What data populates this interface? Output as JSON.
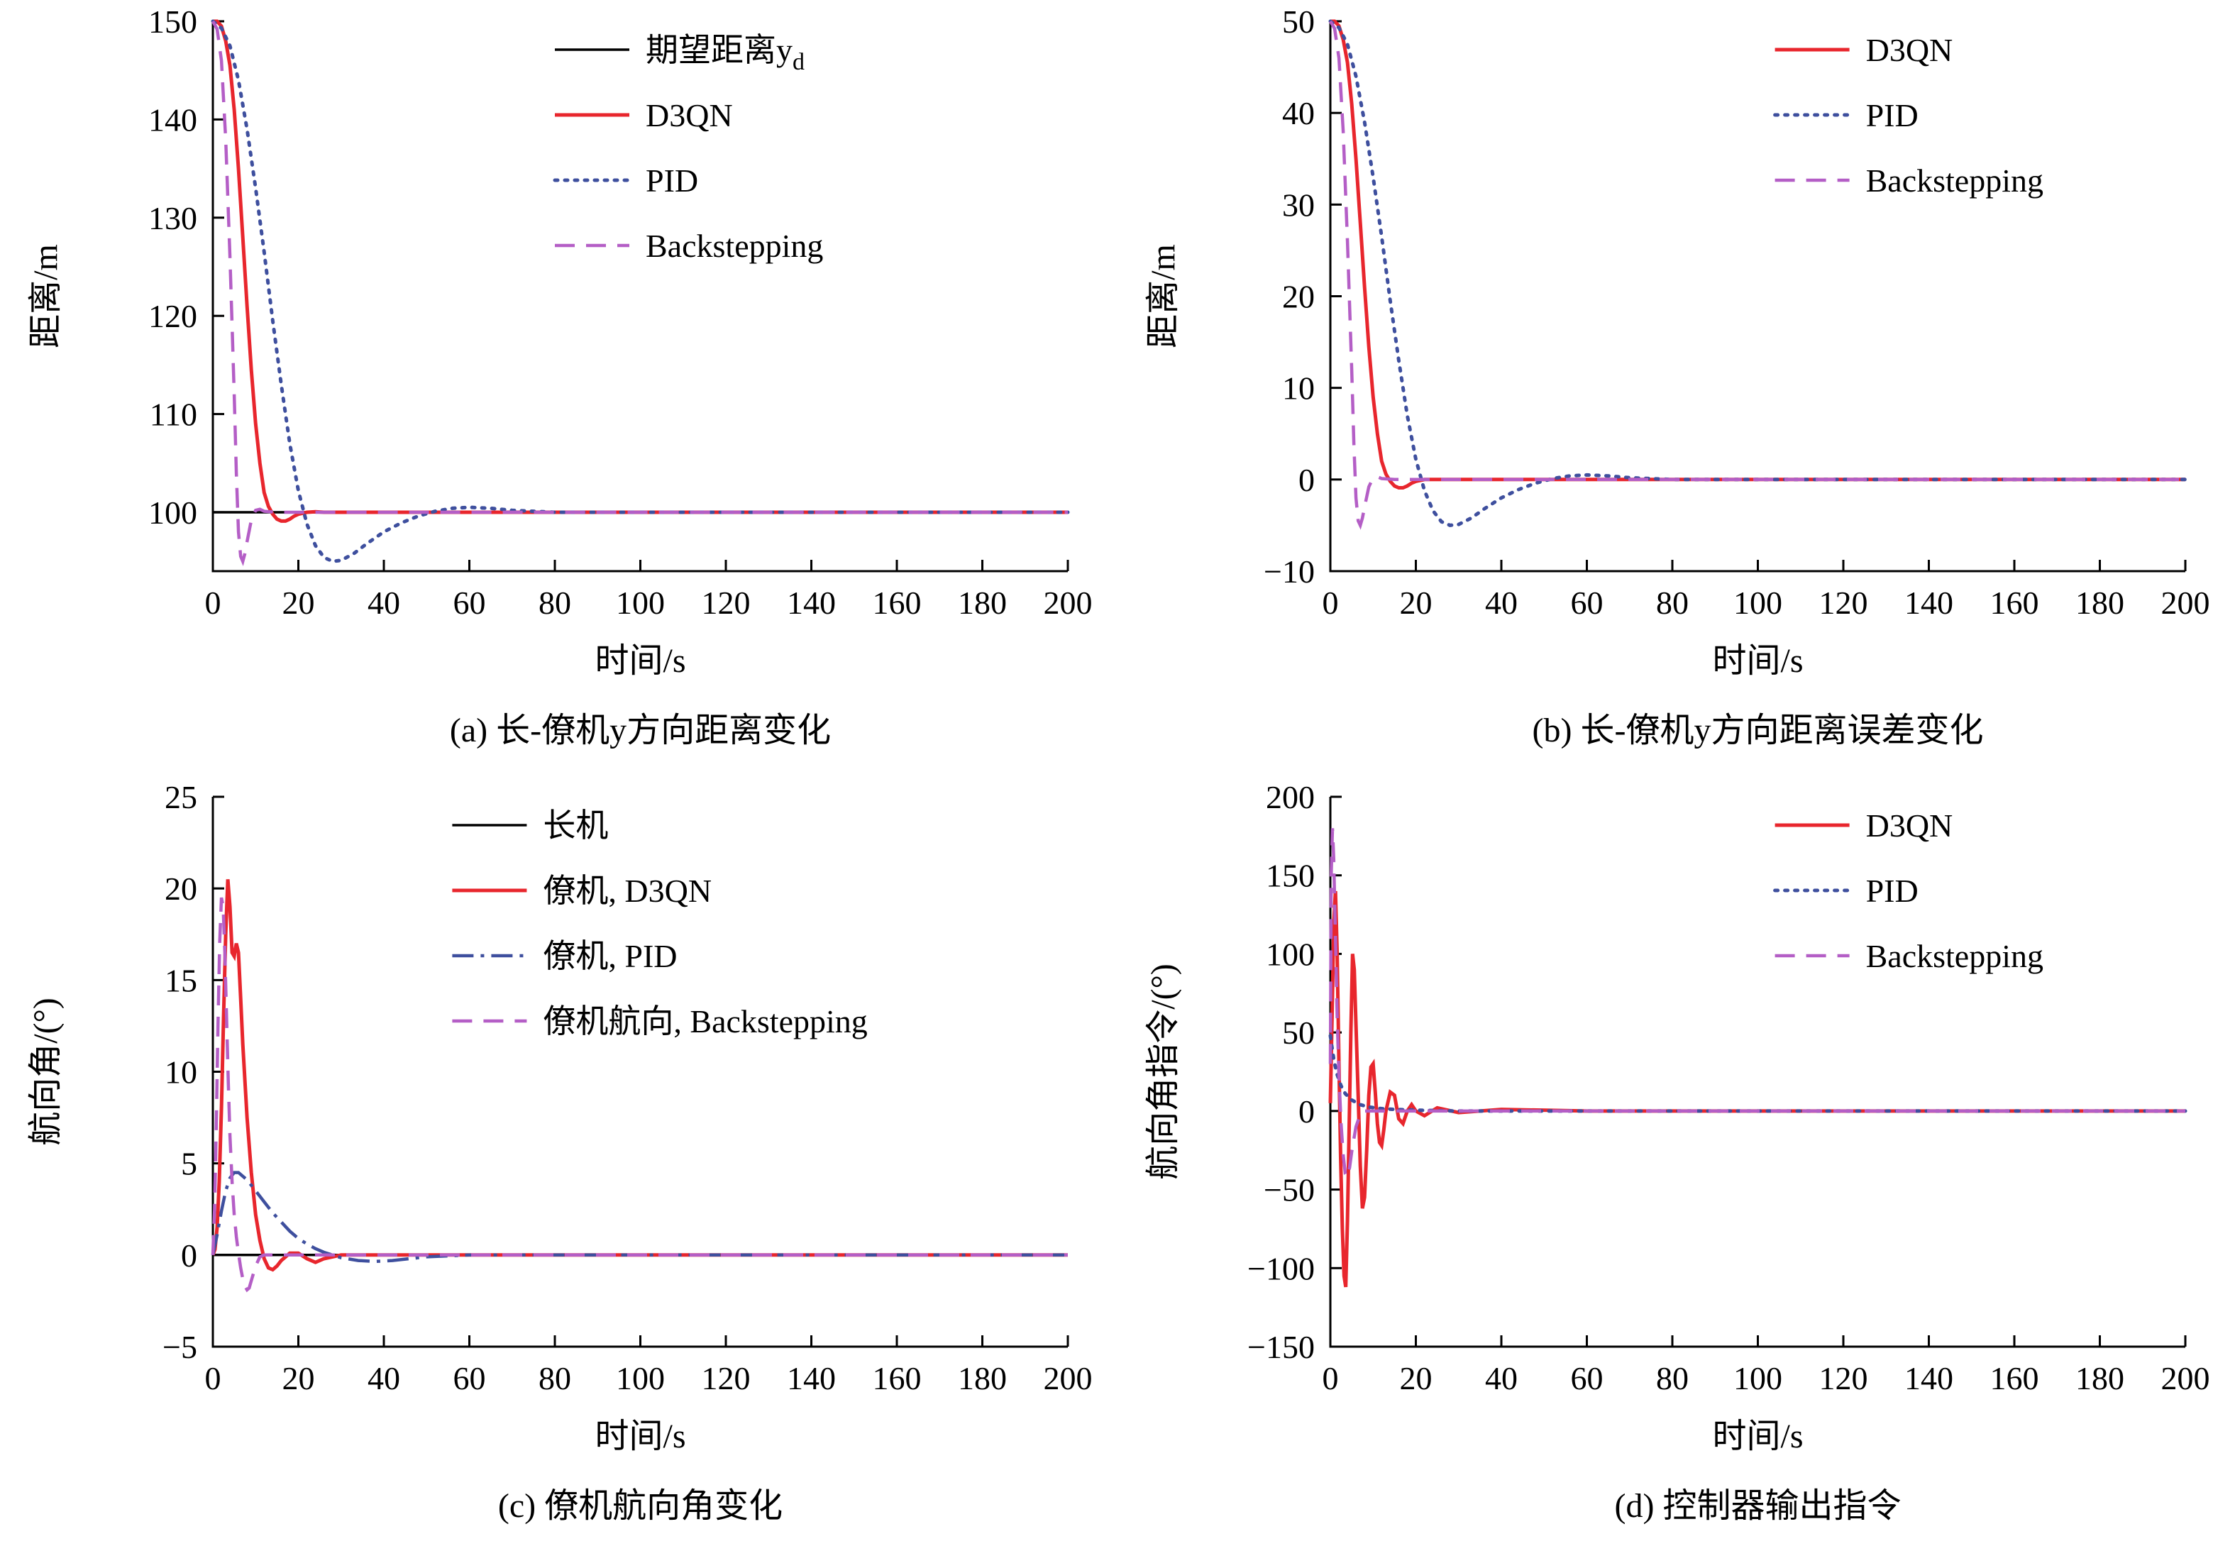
{
  "page": {
    "background": "#ffffff"
  },
  "palette": {
    "black": "#000000",
    "red": "#e8262d",
    "blue": "#3e4f9e",
    "purple": "#b45ec6"
  },
  "chart_data": [
    {
      "id": "a",
      "type": "line",
      "caption": "(a) 长-僚机y方向距离变化",
      "xlabel": "时间/s",
      "ylabel": "距离/m",
      "xlim": [
        0,
        200
      ],
      "ylim": [
        94,
        150
      ],
      "xticks": [
        0,
        20,
        40,
        60,
        80,
        100,
        120,
        140,
        160,
        180,
        200
      ],
      "yticks": [
        100,
        110,
        120,
        130,
        140,
        150
      ],
      "legend_pos": {
        "fx": 0.4,
        "fy": 0.0
      },
      "series": [
        {
          "name": "期望距离y_d",
          "color": "black",
          "dash": "solid",
          "width": 3.5,
          "x": [
            0,
            200
          ],
          "y": [
            100,
            100
          ]
        },
        {
          "name": "D3QN",
          "color": "red",
          "dash": "solid",
          "width": 5,
          "x": [
            0,
            1,
            2,
            3,
            4,
            5,
            6,
            7,
            8,
            9,
            10,
            11,
            12,
            13,
            14,
            15,
            16,
            17,
            18,
            19,
            20,
            22,
            24,
            26,
            30,
            40,
            60,
            100,
            200
          ],
          "y": [
            150,
            150,
            149.5,
            148,
            145.5,
            141,
            135,
            128,
            121,
            114.5,
            109,
            105,
            102,
            100.6,
            99.8,
            99.3,
            99.1,
            99.1,
            99.3,
            99.6,
            99.8,
            100,
            100.05,
            100,
            100,
            100,
            100,
            100,
            100
          ]
        },
        {
          "name": "PID",
          "color": "blue",
          "dash": "dotted",
          "width": 5,
          "x": [
            0,
            2,
            4,
            6,
            8,
            10,
            12,
            14,
            16,
            18,
            20,
            22,
            24,
            26,
            28,
            30,
            33,
            36,
            40,
            44,
            48,
            52,
            56,
            60,
            65,
            70,
            80,
            100,
            200
          ],
          "y": [
            150,
            149.3,
            147.5,
            144,
            139,
            133,
            126.5,
            119.5,
            113,
            107,
            102.2,
            98.8,
            96.6,
            95.4,
            95.0,
            95.1,
            95.8,
            96.8,
            98.0,
            98.9,
            99.6,
            100.1,
            100.4,
            100.5,
            100.4,
            100.2,
            100,
            100,
            100
          ]
        },
        {
          "name": "Backstepping",
          "color": "purple",
          "dash": "dashed",
          "width": 4.5,
          "x": [
            0,
            1,
            2,
            3,
            4,
            5,
            5.5,
            6,
            6.5,
            7,
            7.5,
            8,
            9,
            10,
            11,
            12,
            15,
            200
          ],
          "y": [
            150,
            149.2,
            146,
            138,
            126,
            112,
            104,
            98,
            95.5,
            95,
            95.8,
            97,
            99.2,
            100.2,
            100.3,
            100.1,
            100,
            100
          ]
        }
      ]
    },
    {
      "id": "b",
      "type": "line",
      "caption": "(b) 长-僚机y方向距离误差变化",
      "xlabel": "时间/s",
      "ylabel": "距离/m",
      "xlim": [
        0,
        200
      ],
      "ylim": [
        -10,
        50
      ],
      "xticks": [
        0,
        20,
        40,
        60,
        80,
        100,
        120,
        140,
        160,
        180,
        200
      ],
      "yticks": [
        -10,
        0,
        10,
        20,
        30,
        40,
        50
      ],
      "legend_pos": {
        "fx": 0.52,
        "fy": 0.0
      },
      "series": [
        {
          "name": "D3QN",
          "color": "red",
          "dash": "solid",
          "width": 5,
          "x": [
            0,
            1,
            2,
            3,
            4,
            5,
            6,
            7,
            8,
            9,
            10,
            11,
            12,
            13,
            14,
            15,
            16,
            17,
            18,
            19,
            20,
            22,
            24,
            26,
            30,
            40,
            60,
            100,
            200
          ],
          "y": [
            50,
            50,
            49.5,
            48,
            45.5,
            41,
            35,
            28,
            21,
            14.5,
            9,
            5,
            2,
            0.6,
            -0.2,
            -0.7,
            -0.9,
            -0.9,
            -0.7,
            -0.4,
            -0.2,
            0,
            0,
            0,
            0,
            0,
            0,
            0,
            0
          ]
        },
        {
          "name": "PID",
          "color": "blue",
          "dash": "dotted",
          "width": 5,
          "x": [
            0,
            2,
            4,
            6,
            8,
            10,
            12,
            14,
            16,
            18,
            20,
            22,
            24,
            26,
            28,
            30,
            33,
            36,
            40,
            44,
            48,
            52,
            56,
            60,
            65,
            70,
            80,
            100,
            200
          ],
          "y": [
            50,
            49.3,
            47.5,
            44,
            39,
            33,
            26.5,
            19.5,
            13,
            7,
            2.2,
            -1.2,
            -3.4,
            -4.6,
            -5.0,
            -4.9,
            -4.2,
            -3.2,
            -2.0,
            -1.1,
            -0.4,
            0.1,
            0.4,
            0.5,
            0.4,
            0.2,
            0,
            0,
            0
          ]
        },
        {
          "name": "Backstepping",
          "color": "purple",
          "dash": "dashed",
          "width": 4.5,
          "x": [
            0,
            1,
            2,
            3,
            4,
            5,
            5.5,
            6,
            6.5,
            7,
            7.5,
            8,
            9,
            10,
            11,
            12,
            15,
            200
          ],
          "y": [
            50,
            49.2,
            46,
            38,
            26,
            12,
            4,
            -2,
            -4.5,
            -5,
            -4.2,
            -3,
            -0.8,
            0.2,
            0.3,
            0.1,
            0,
            0
          ]
        }
      ]
    },
    {
      "id": "c",
      "type": "line",
      "caption": "(c) 僚机航向角变化",
      "xlabel": "时间/s",
      "ylabel": "航向角/(°)",
      "xlim": [
        0,
        200
      ],
      "ylim": [
        -5,
        25
      ],
      "xticks": [
        0,
        20,
        40,
        60,
        80,
        100,
        120,
        140,
        160,
        180,
        200
      ],
      "yticks": [
        -5,
        0,
        5,
        10,
        15,
        20,
        25
      ],
      "legend_pos": {
        "fx": 0.28,
        "fy": 0.0
      },
      "series": [
        {
          "name": "长机",
          "color": "black",
          "dash": "solid",
          "width": 3.5,
          "x": [
            0,
            200
          ],
          "y": [
            0,
            0
          ]
        },
        {
          "name": "僚机, D3QN",
          "color": "red",
          "dash": "solid",
          "width": 5,
          "x": [
            0,
            0.5,
            1,
            1.5,
            2,
            2.5,
            3,
            3.5,
            4,
            4.5,
            5,
            5.5,
            6,
            6.5,
            7,
            8,
            9,
            10,
            11,
            12,
            13,
            14,
            15,
            16,
            18,
            20,
            22,
            24,
            26,
            30,
            40,
            200
          ],
          "y": [
            0,
            0.3,
            1.5,
            4,
            8,
            13,
            17.5,
            20.5,
            19,
            16.5,
            16.3,
            17,
            16.5,
            14,
            11.5,
            7.5,
            4.5,
            2.2,
            0.8,
            -0.2,
            -0.7,
            -0.8,
            -0.6,
            -0.3,
            0.1,
            0.1,
            -0.2,
            -0.4,
            -0.2,
            0,
            0,
            0
          ]
        },
        {
          "name": "僚机, PID",
          "color": "blue",
          "dash": "dashdot",
          "width": 4.5,
          "x": [
            0,
            1,
            2,
            3,
            4,
            5,
            6,
            7,
            8,
            10,
            12,
            14,
            16,
            18,
            20,
            22,
            24,
            26,
            28,
            30,
            34,
            38,
            42,
            46,
            50,
            60,
            80,
            200
          ],
          "y": [
            0,
            1.1,
            2.4,
            3.5,
            4.2,
            4.5,
            4.5,
            4.3,
            4.1,
            3.5,
            2.9,
            2.3,
            1.8,
            1.3,
            0.9,
            0.6,
            0.35,
            0.15,
            0,
            -0.15,
            -0.3,
            -0.35,
            -0.3,
            -0.2,
            -0.1,
            0,
            0,
            0
          ]
        },
        {
          "name": "僚机航向, Backstepping",
          "color": "purple",
          "dash": "dashed",
          "width": 4.5,
          "x": [
            0,
            0.4,
            0.8,
            1.2,
            1.6,
            2,
            2.4,
            2.8,
            3.2,
            3.6,
            4,
            4.5,
            5,
            5.5,
            6,
            6.5,
            7,
            7.5,
            8,
            8.5,
            9,
            10,
            11,
            12,
            14,
            200
          ],
          "y": [
            0,
            2.5,
            7,
            12.5,
            17,
            19.5,
            19,
            16.5,
            13,
            9.5,
            6.5,
            4,
            2.2,
            1,
            0.1,
            -0.7,
            -1.3,
            -1.7,
            -1.9,
            -1.8,
            -1.4,
            -0.6,
            -0.1,
            0,
            0,
            0
          ]
        }
      ]
    },
    {
      "id": "d",
      "type": "line",
      "caption": "(d) 控制器输出指令",
      "xlabel": "时间/s",
      "ylabel": "航向角指令/(°)",
      "xlim": [
        0,
        200
      ],
      "ylim": [
        -150,
        200
      ],
      "xticks": [
        0,
        20,
        40,
        60,
        80,
        100,
        120,
        140,
        160,
        180,
        200
      ],
      "yticks": [
        -150,
        -100,
        -50,
        0,
        50,
        100,
        150,
        200
      ],
      "legend_pos": {
        "fx": 0.52,
        "fy": 0.0
      },
      "series": [
        {
          "name": "D3QN",
          "color": "red",
          "dash": "solid",
          "width": 5,
          "x": [
            0,
            0.4,
            0.8,
            1.2,
            1.6,
            2,
            2.4,
            2.8,
            3.2,
            3.6,
            4,
            4.4,
            4.8,
            5.2,
            5.6,
            6,
            6.5,
            7,
            7.5,
            8,
            8.5,
            9,
            9.5,
            10,
            10.5,
            11,
            11.5,
            12,
            12.5,
            13,
            14,
            15,
            16,
            17,
            18,
            19,
            20,
            22,
            25,
            30,
            40,
            60,
            100,
            150,
            200
          ],
          "y": [
            5,
            60,
            120,
            140,
            100,
            30,
            -30,
            -75,
            -105,
            -112,
            -70,
            -10,
            50,
            100,
            90,
            55,
            10,
            -35,
            -62,
            -55,
            -25,
            10,
            28,
            30,
            12,
            -8,
            -20,
            -22,
            -12,
            0,
            12,
            10,
            -5,
            -8,
            0,
            4,
            0,
            -3,
            2,
            -1,
            1,
            0,
            0,
            0,
            0
          ]
        },
        {
          "name": "PID",
          "color": "blue",
          "dash": "dotted",
          "width": 5,
          "x": [
            0,
            0.3,
            0.8,
            1.5,
            2.5,
            3.5,
            5,
            7,
            9,
            12,
            15,
            20,
            30,
            50,
            100,
            200
          ],
          "y": [
            48,
            42,
            33,
            24,
            16,
            11,
            7,
            4,
            2.5,
            1.5,
            1,
            0.5,
            0,
            0,
            0,
            0
          ]
        },
        {
          "name": "Backstepping",
          "color": "purple",
          "dash": "dashed",
          "width": 4.5,
          "x": [
            0,
            0.2,
            0.5,
            0.8,
            1.2,
            1.6,
            2,
            2.5,
            3,
            3.5,
            4,
            4.5,
            5,
            6,
            7,
            8,
            10,
            200
          ],
          "y": [
            30,
            150,
            180,
            160,
            110,
            60,
            22,
            -8,
            -28,
            -40,
            -42,
            -36,
            -26,
            -10,
            -2,
            0,
            0,
            0
          ]
        }
      ]
    }
  ]
}
